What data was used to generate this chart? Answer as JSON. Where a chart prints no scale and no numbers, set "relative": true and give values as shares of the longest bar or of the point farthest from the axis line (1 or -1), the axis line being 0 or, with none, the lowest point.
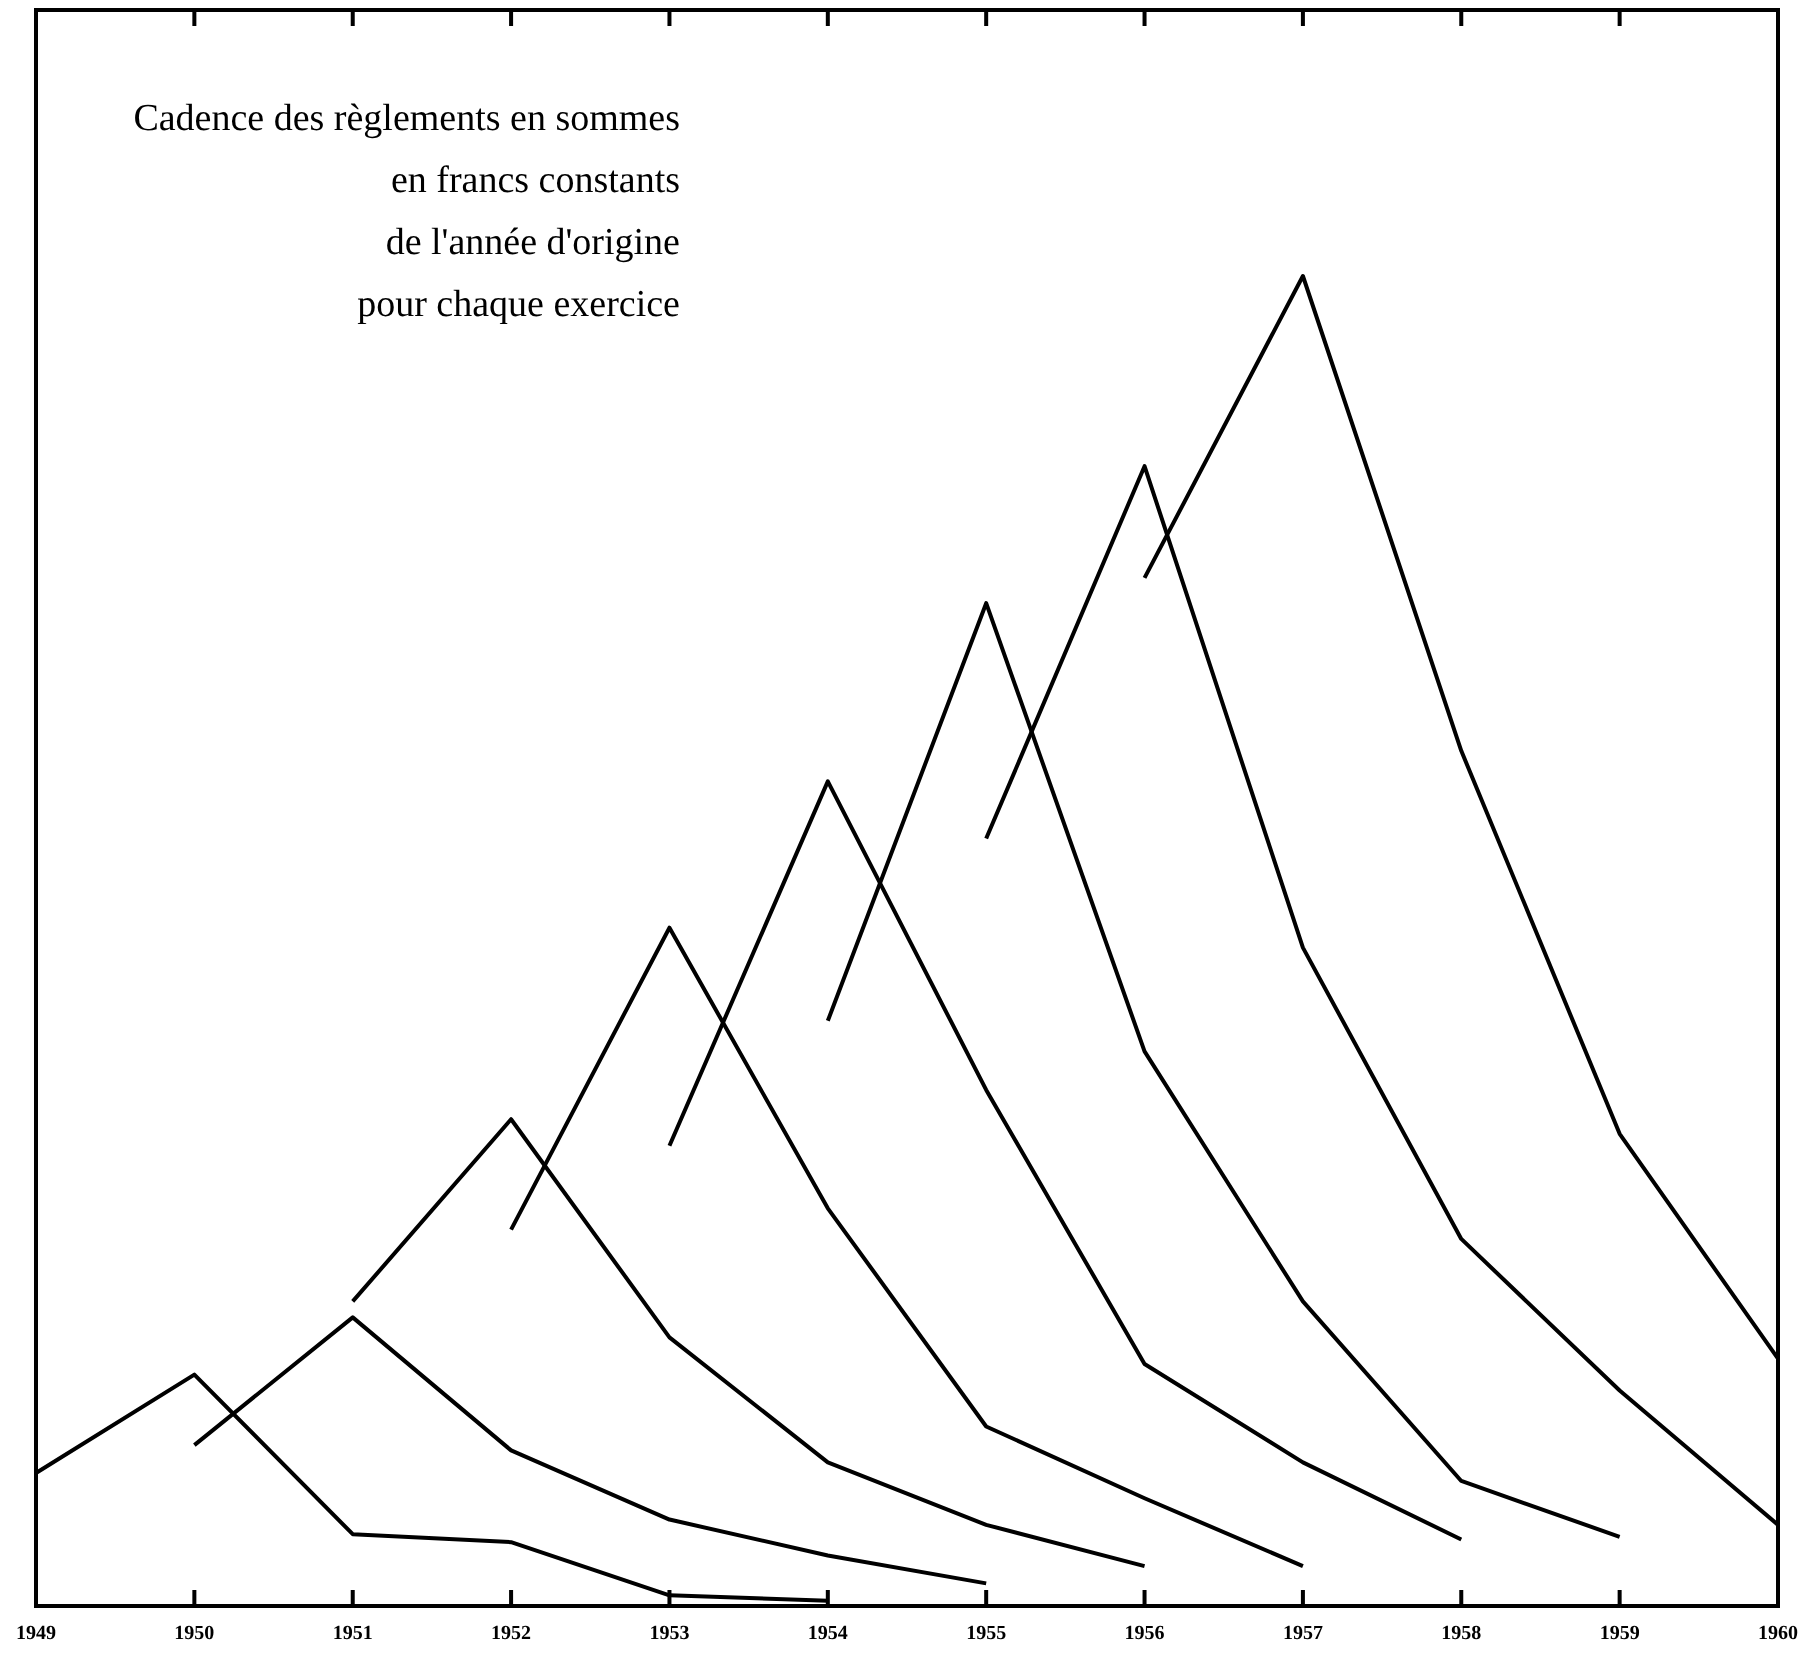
{
  "chart_data": {
    "type": "line",
    "title": "Cadence des règlements en sommes\nen francs constants\nde l'année d'origine\npour chaque exercice",
    "relative": true,
    "legend": false,
    "grid": false,
    "marker": "none",
    "line_style": "solid",
    "categories": [
      "1949",
      "1950",
      "1951",
      "1952",
      "1953",
      "1954",
      "1955",
      "1956",
      "1957",
      "1958",
      "1959",
      "1960"
    ],
    "series": [
      {
        "color": "#000000",
        "values": [
          0.1,
          0.174,
          0.054,
          0.048,
          0.008,
          0.004,
          null,
          null,
          null,
          null,
          null,
          null
        ]
      },
      {
        "color": "#000000",
        "values": [
          null,
          0.121,
          0.217,
          0.117,
          0.065,
          0.038,
          0.017,
          null,
          null,
          null,
          null,
          null
        ]
      },
      {
        "color": "#000000",
        "values": [
          null,
          null,
          0.229,
          0.366,
          0.202,
          0.108,
          0.061,
          0.03,
          null,
          null,
          null,
          null
        ]
      },
      {
        "color": "#000000",
        "values": [
          null,
          null,
          null,
          0.283,
          0.51,
          0.299,
          0.135,
          0.081,
          0.03,
          null,
          null,
          null
        ]
      },
      {
        "color": "#000000",
        "values": [
          null,
          null,
          null,
          null,
          0.346,
          0.62,
          0.388,
          0.182,
          0.108,
          0.05,
          null,
          null
        ]
      },
      {
        "color": "#000000",
        "values": [
          null,
          null,
          null,
          null,
          null,
          0.44,
          0.754,
          0.417,
          0.229,
          0.094,
          0.052,
          null
        ]
      },
      {
        "color": "#000000",
        "values": [
          null,
          null,
          null,
          null,
          null,
          null,
          0.577,
          0.857,
          0.495,
          0.276,
          0.162,
          0.061
        ]
      },
      {
        "color": "#000000",
        "values": [
          null,
          null,
          null,
          null,
          null,
          null,
          null,
          0.773,
          1,
          0.643,
          0.355,
          0.186
        ]
      }
    ]
  }
}
